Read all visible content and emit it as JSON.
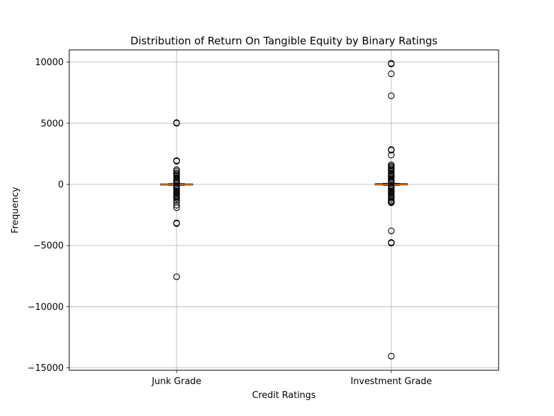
{
  "chart_data": {
    "type": "box",
    "title": "Distribution of Return On Tangible Equity by Binary Ratings",
    "xlabel": "Credit Ratings",
    "ylabel": "Frequency",
    "ylim": [
      -15200,
      11000
    ],
    "yticks": [
      10000,
      5000,
      0,
      -5000,
      -10000,
      -15000
    ],
    "ytick_labels": [
      "10000",
      "5000",
      "0",
      "−5000",
      "−10000",
      "−15000"
    ],
    "grid": true,
    "categories": [
      "Junk Grade",
      "Investment Grade"
    ],
    "series": [
      {
        "category": "Junk Grade",
        "median": 0,
        "q1": -40,
        "q3": 40,
        "whisker_low": -70,
        "whisker_high": 70,
        "outliers": [
          5050,
          5000,
          1950,
          1900,
          1200,
          1100,
          950,
          850,
          750,
          650,
          550,
          450,
          350,
          250,
          180,
          130,
          -130,
          -180,
          -250,
          -350,
          -450,
          -550,
          -650,
          -750,
          -850,
          -950,
          -1050,
          -1150,
          -1300,
          -1450,
          -1700,
          -1900,
          -3150,
          -3200,
          -7550
        ]
      },
      {
        "category": "Investment Grade",
        "median": 0,
        "q1": -40,
        "q3": 60,
        "whisker_low": -70,
        "whisker_high": 90,
        "outliers": [
          9900,
          9850,
          9050,
          7250,
          2850,
          2800,
          2400,
          1600,
          1500,
          1400,
          1300,
          1200,
          1100,
          900,
          800,
          700,
          600,
          500,
          400,
          300,
          200,
          150,
          -130,
          -180,
          -250,
          -350,
          -450,
          -550,
          -650,
          -750,
          -850,
          -950,
          -1050,
          -1150,
          -1300,
          -1400,
          -1450,
          -1500,
          -3800,
          -4750,
          -4800,
          -14050
        ]
      }
    ],
    "colors": {
      "median": "#ff7f0e",
      "box": "#000000",
      "outlier_edge": "#000000",
      "grid": "#b0b0b0"
    }
  }
}
